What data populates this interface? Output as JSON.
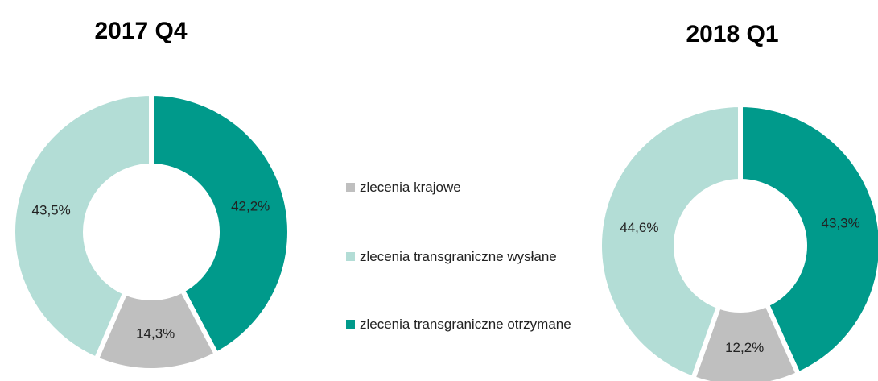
{
  "chart_data": [
    {
      "type": "donut",
      "title": "2017 Q4",
      "categories": [
        "zlecenia krajowe",
        "zlecenia transgraniczne wysłane",
        "zlecenia transgraniczne otrzymane"
      ],
      "values": [
        14.3,
        43.5,
        42.2
      ],
      "value_labels": [
        "14,3%",
        "43,5%",
        "42,2%"
      ],
      "colors": [
        "#bfbfbf",
        "#b3ddd6",
        "#009a8b"
      ]
    },
    {
      "type": "donut",
      "title": "2018 Q1",
      "categories": [
        "zlecenia krajowe",
        "zlecenia transgraniczne wysłane",
        "zlecenia transgraniczne otrzymane"
      ],
      "values": [
        12.2,
        44.6,
        43.3
      ],
      "value_labels": [
        "12,2%",
        "44,6%",
        "43,3%"
      ],
      "colors": [
        "#bfbfbf",
        "#b3ddd6",
        "#009a8b"
      ]
    }
  ]
}
